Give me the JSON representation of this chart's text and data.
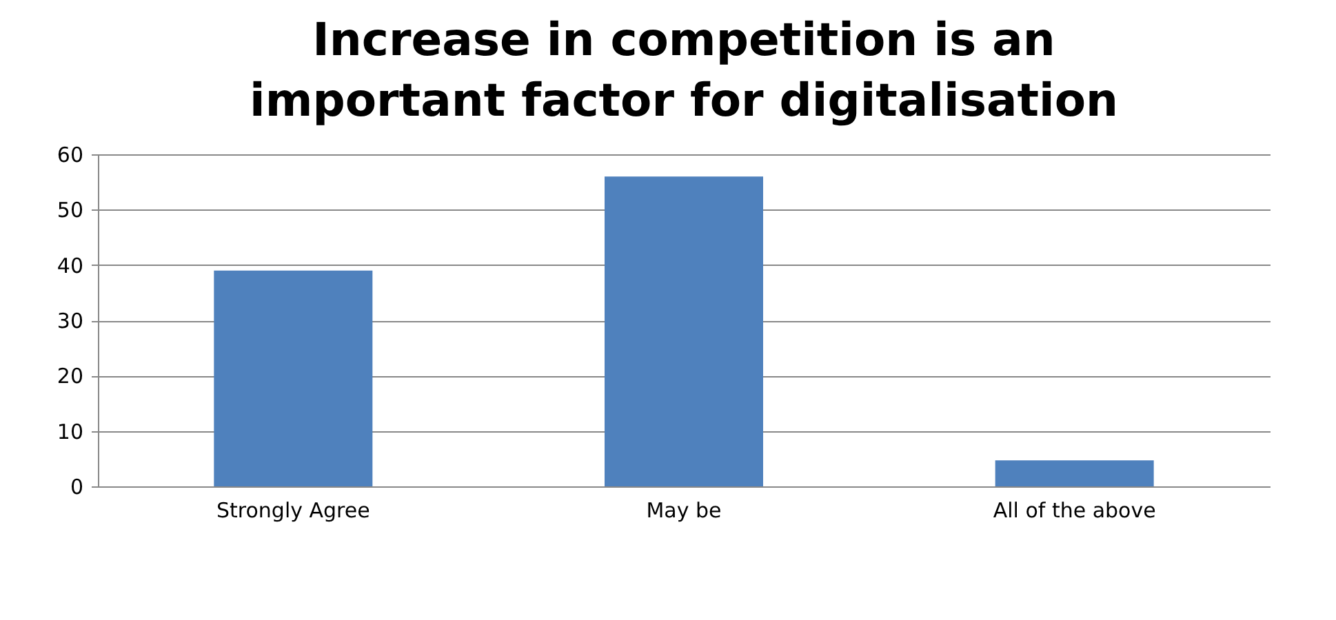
{
  "chart_data": {
    "type": "bar",
    "title": "Increase in competition is an important factor for digitalisation",
    "categories": [
      "Strongly Agree",
      "May be",
      "All of the above"
    ],
    "values": [
      39,
      56,
      4.7
    ],
    "color": "#4f81bd",
    "ylim": [
      0,
      60
    ],
    "yticks": [
      0,
      10,
      20,
      30,
      40,
      50,
      60
    ],
    "grid": "y"
  }
}
